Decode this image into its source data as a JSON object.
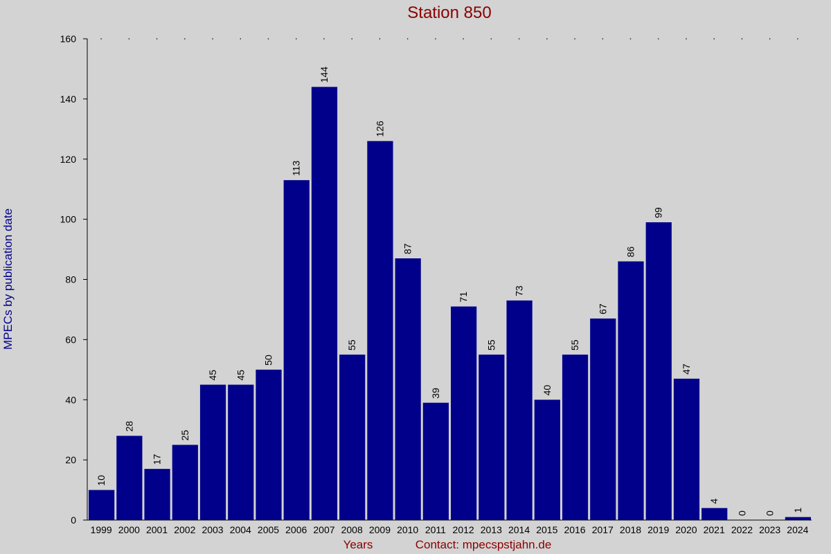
{
  "chart_data": {
    "type": "bar",
    "title": "Station 850",
    "y_label": "MPECs by publication date",
    "x_label": "Years",
    "note": "Contact: mpecspstjahn.de",
    "categories": [
      "1999",
      "2000",
      "2001",
      "2002",
      "2003",
      "2004",
      "2005",
      "2006",
      "2007",
      "2008",
      "2009",
      "2010",
      "2011",
      "2012",
      "2013",
      "2014",
      "2015",
      "2016",
      "2017",
      "2018",
      "2019",
      "2020",
      "2021",
      "2022",
      "2023",
      "2024"
    ],
    "values": [
      10,
      28,
      17,
      25,
      45,
      45,
      50,
      113,
      144,
      55,
      126,
      87,
      39,
      71,
      55,
      73,
      40,
      55,
      67,
      86,
      99,
      47,
      4,
      0,
      0,
      1
    ],
    "color": "#00008b",
    "ylim": [
      0,
      160
    ],
    "yticks": [
      0,
      20,
      40,
      60,
      80,
      100,
      120,
      140,
      160
    ],
    "grid": false
  }
}
